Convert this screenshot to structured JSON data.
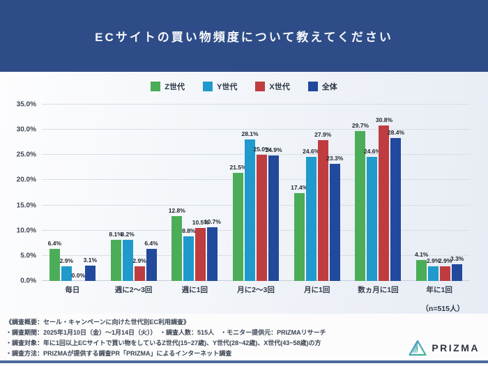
{
  "header": {
    "title": "ECサイトの買い物頻度について教えてください"
  },
  "chart_data": {
    "type": "bar",
    "title": "ECサイトの買い物頻度について教えてください",
    "categories": [
      "毎日",
      "週に2〜3回",
      "週に1回",
      "月に2〜3回",
      "月に1回",
      "数ヵ月に1回",
      "年に1回"
    ],
    "series": [
      {
        "name": "Z世代",
        "color": "#4bad57",
        "values": [
          6.4,
          8.1,
          12.8,
          21.5,
          17.4,
          29.7,
          4.1
        ]
      },
      {
        "name": "Y世代",
        "color": "#2099cc",
        "values": [
          2.9,
          8.2,
          8.8,
          28.1,
          24.6,
          24.6,
          2.9
        ]
      },
      {
        "name": "X世代",
        "color": "#bf3d3f",
        "values": [
          0.0,
          2.9,
          10.5,
          25.0,
          27.9,
          30.8,
          2.9
        ]
      },
      {
        "name": "全体",
        "color": "#21499c",
        "values": [
          3.1,
          6.4,
          10.7,
          24.9,
          23.3,
          28.4,
          3.3
        ]
      }
    ],
    "ylim": [
      0,
      35
    ],
    "ytick_step": 5,
    "yticks": [
      "35.0%",
      "30.0%",
      "25.0%",
      "20.0%",
      "15.0%",
      "10.0%",
      "5.0%",
      "0.0%"
    ],
    "value_suffix": "%",
    "legend_position": "top",
    "grid": true,
    "sample_note": "（n=515人）"
  },
  "footer": {
    "lines": [
      "《調査概要：セール・キャンペーンに向けた世代別EC利用調査》",
      "・調査期間：2025年1月10日（金）〜1月14日（火））　・調査人数：515人　・モニター提供元：PRIZMAリサーチ",
      "・調査対象：年に1回以上ECサイトで買い物をしているZ世代(15~27歳)、Y世代(28~42歳)、X世代(43~58歳)の方",
      "・調査方法：PRIZMAが提供する調査PR「PRIZMA」によるインターネット調査"
    ],
    "logo_text": "PRIZMA"
  },
  "colors": {
    "header_bg": "#2e4c87",
    "accent_line": "#4d6aa0"
  }
}
